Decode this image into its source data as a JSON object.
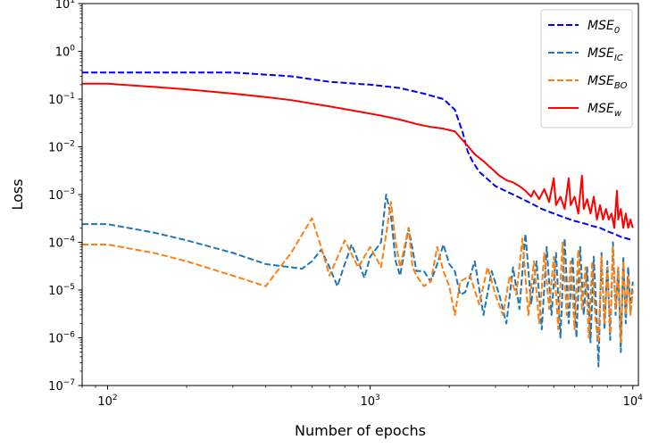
{
  "chart_data": {
    "type": "line",
    "x_scale": "log",
    "y_scale": "log",
    "xlim": [
      80,
      10500
    ],
    "ylim": [
      1e-07,
      10
    ],
    "xlabel": "Number of epochs",
    "ylabel": "Loss",
    "x_ticks": [
      {
        "value": 100,
        "base": "10",
        "exp": "2"
      },
      {
        "value": 1000,
        "base": "10",
        "exp": "3"
      },
      {
        "value": 10000,
        "base": "10",
        "exp": "4"
      }
    ],
    "y_ticks": [
      {
        "value": 10.0,
        "base": "10",
        "exp": "1"
      },
      {
        "value": 1.0,
        "base": "10",
        "exp": "0"
      },
      {
        "value": 0.1,
        "base": "10",
        "exp": "−1"
      },
      {
        "value": 0.01,
        "base": "10",
        "exp": "−2"
      },
      {
        "value": 0.001,
        "base": "10",
        "exp": "−3"
      },
      {
        "value": 0.0001,
        "base": "10",
        "exp": "−4"
      },
      {
        "value": 1e-05,
        "base": "10",
        "exp": "−5"
      },
      {
        "value": 1e-06,
        "base": "10",
        "exp": "−6"
      },
      {
        "value": 1e-07,
        "base": "10",
        "exp": "−7"
      }
    ],
    "legend": {
      "placement": "top-right",
      "entries": [
        {
          "main": "MSE",
          "sub": "0",
          "color": "#0000ff",
          "dash": "dashed"
        },
        {
          "main": "MSE",
          "sub": "IC",
          "color": "#1f77b4",
          "dash": "dashed"
        },
        {
          "main": "MSE",
          "sub": "BO",
          "color": "#ff7f0e",
          "dash": "dashed"
        },
        {
          "main": "MSE",
          "sub": "w",
          "color": "#ff0000",
          "dash": "solid"
        }
      ]
    },
    "series": [
      {
        "name": "MSE_0",
        "color": "#0000ff",
        "dash": "dashed",
        "points": [
          [
            80,
            0.36
          ],
          [
            150,
            0.36
          ],
          [
            300,
            0.36
          ],
          [
            500,
            0.3
          ],
          [
            700,
            0.23
          ],
          [
            1000,
            0.2
          ],
          [
            1300,
            0.17
          ],
          [
            1600,
            0.13
          ],
          [
            1900,
            0.1
          ],
          [
            2100,
            0.06
          ],
          [
            2250,
            0.02
          ],
          [
            2350,
            0.008
          ],
          [
            2450,
            0.005
          ],
          [
            2600,
            0.003
          ],
          [
            3000,
            0.0015
          ],
          [
            3500,
            0.001
          ],
          [
            4000,
            0.0007
          ],
          [
            4500,
            0.0005
          ],
          [
            5000,
            0.0004
          ],
          [
            5500,
            0.00033
          ],
          [
            6000,
            0.00028
          ],
          [
            6500,
            0.00025
          ],
          [
            7000,
            0.00022
          ],
          [
            7500,
            0.0002
          ],
          [
            8000,
            0.00017
          ],
          [
            8500,
            0.00015
          ],
          [
            9000,
            0.00013
          ],
          [
            9500,
            0.00012
          ],
          [
            10000,
            0.00011
          ]
        ]
      },
      {
        "name": "MSE_IC",
        "color": "#1f77b4",
        "dash": "dashed",
        "points": [
          [
            80,
            0.00024
          ],
          [
            100,
            0.00024
          ],
          [
            150,
            0.00016
          ],
          [
            200,
            0.00011
          ],
          [
            300,
            6e-05
          ],
          [
            400,
            3.5e-05
          ],
          [
            550,
            2.8e-05
          ],
          [
            600,
            4e-05
          ],
          [
            650,
            7e-05
          ],
          [
            700,
            3e-05
          ],
          [
            750,
            1.2e-05
          ],
          [
            800,
            3.5e-05
          ],
          [
            850,
            9e-05
          ],
          [
            900,
            4e-05
          ],
          [
            950,
            1.8e-05
          ],
          [
            1000,
            5e-05
          ],
          [
            1100,
            0.0001
          ],
          [
            1150,
            0.001
          ],
          [
            1200,
            0.00035
          ],
          [
            1250,
            4e-05
          ],
          [
            1300,
            2e-05
          ],
          [
            1400,
            0.0002
          ],
          [
            1500,
            2.5e-05
          ],
          [
            1600,
            2.5e-05
          ],
          [
            1700,
            1.5e-05
          ],
          [
            1800,
            3.5e-05
          ],
          [
            1900,
            9e-05
          ],
          [
            2000,
            3.5e-05
          ],
          [
            2100,
            2.5e-05
          ],
          [
            2200,
            8e-06
          ],
          [
            2300,
            9e-06
          ],
          [
            2500,
            4e-05
          ],
          [
            2700,
            3e-06
          ],
          [
            2900,
            2.5e-05
          ],
          [
            3100,
            8e-06
          ],
          [
            3300,
            2e-06
          ],
          [
            3500,
            3e-05
          ],
          [
            3700,
            4e-06
          ],
          [
            3900,
            0.00015
          ],
          [
            4100,
            5e-06
          ],
          [
            4300,
            4e-05
          ],
          [
            4500,
            1.5e-06
          ],
          [
            4700,
            8e-05
          ],
          [
            4900,
            3e-06
          ],
          [
            5100,
            6e-05
          ],
          [
            5300,
            1e-06
          ],
          [
            5500,
            0.00012
          ],
          [
            5700,
            2e-06
          ],
          [
            5900,
            5e-05
          ],
          [
            6100,
            1e-06
          ],
          [
            6300,
            8e-05
          ],
          [
            6500,
            3e-06
          ],
          [
            6700,
            3e-05
          ],
          [
            6900,
            8e-07
          ],
          [
            7100,
            5e-05
          ],
          [
            7300,
            2e-06
          ],
          [
            7400,
            2.5e-07
          ],
          [
            7600,
            6e-05
          ],
          [
            7800,
            1.5e-06
          ],
          [
            8000,
            4e-05
          ],
          [
            8200,
            9e-07
          ],
          [
            8400,
            0.0001
          ],
          [
            8600,
            3e-06
          ],
          [
            8800,
            3e-05
          ],
          [
            9000,
            5e-07
          ],
          [
            9200,
            5e-05
          ],
          [
            9400,
            2e-06
          ],
          [
            9600,
            3e-05
          ],
          [
            9800,
            4e-06
          ],
          [
            10000,
            1.5e-05
          ]
        ]
      },
      {
        "name": "MSE_BO",
        "color": "#ff7f0e",
        "dash": "dashed",
        "points": [
          [
            80,
            9e-05
          ],
          [
            100,
            9e-05
          ],
          [
            150,
            6e-05
          ],
          [
            200,
            4e-05
          ],
          [
            300,
            2e-05
          ],
          [
            400,
            1.2e-05
          ],
          [
            500,
            6e-05
          ],
          [
            600,
            0.00032
          ],
          [
            650,
            8e-05
          ],
          [
            700,
            2e-05
          ],
          [
            800,
            0.00011
          ],
          [
            900,
            3e-05
          ],
          [
            1000,
            8e-05
          ],
          [
            1100,
            3e-05
          ],
          [
            1200,
            0.0007
          ],
          [
            1250,
            0.0001
          ],
          [
            1300,
            3e-05
          ],
          [
            1400,
            0.0002
          ],
          [
            1450,
            3e-05
          ],
          [
            1500,
            2e-05
          ],
          [
            1600,
            1.2e-05
          ],
          [
            1700,
            1.5e-05
          ],
          [
            1800,
            8e-05
          ],
          [
            1900,
            2.5e-05
          ],
          [
            2000,
            1.2e-05
          ],
          [
            2100,
            3e-06
          ],
          [
            2200,
            1.5e-05
          ],
          [
            2400,
            2e-05
          ],
          [
            2600,
            5e-06
          ],
          [
            2800,
            3e-05
          ],
          [
            3000,
            8e-06
          ],
          [
            3200,
            3e-06
          ],
          [
            3400,
            2e-05
          ],
          [
            3600,
            8e-06
          ],
          [
            3800,
            0.00012
          ],
          [
            4000,
            3e-06
          ],
          [
            4200,
            4e-05
          ],
          [
            4400,
            2e-06
          ],
          [
            4600,
            6e-05
          ],
          [
            4800,
            4e-06
          ],
          [
            5000,
            5e-05
          ],
          [
            5200,
            1.5e-06
          ],
          [
            5400,
            0.0001
          ],
          [
            5600,
            3e-06
          ],
          [
            5800,
            4e-05
          ],
          [
            6000,
            1.5e-06
          ],
          [
            6200,
            7e-05
          ],
          [
            6400,
            4e-06
          ],
          [
            6600,
            3e-05
          ],
          [
            6800,
            1e-06
          ],
          [
            7000,
            4e-05
          ],
          [
            7200,
            2.5e-06
          ],
          [
            7400,
            8e-07
          ],
          [
            7600,
            5e-05
          ],
          [
            7800,
            2e-06
          ],
          [
            8000,
            3e-05
          ],
          [
            8200,
            1.2e-06
          ],
          [
            8400,
            8e-05
          ],
          [
            8600,
            4e-06
          ],
          [
            8800,
            3e-05
          ],
          [
            9000,
            8e-07
          ],
          [
            9200,
            4e-05
          ],
          [
            9400,
            3e-06
          ],
          [
            9600,
            2e-05
          ],
          [
            9800,
            3e-06
          ],
          [
            10000,
            1e-05
          ]
        ]
      },
      {
        "name": "MSE_w",
        "color": "#ff0000",
        "dash": "solid",
        "points": [
          [
            80,
            0.21
          ],
          [
            100,
            0.21
          ],
          [
            150,
            0.18
          ],
          [
            200,
            0.16
          ],
          [
            300,
            0.13
          ],
          [
            400,
            0.11
          ],
          [
            500,
            0.095
          ],
          [
            700,
            0.07
          ],
          [
            900,
            0.055
          ],
          [
            1100,
            0.045
          ],
          [
            1300,
            0.037
          ],
          [
            1500,
            0.03
          ],
          [
            1700,
            0.026
          ],
          [
            1900,
            0.024
          ],
          [
            2100,
            0.021
          ],
          [
            2300,
            0.012
          ],
          [
            2500,
            0.007
          ],
          [
            2700,
            0.005
          ],
          [
            2900,
            0.0035
          ],
          [
            3100,
            0.0025
          ],
          [
            3300,
            0.002
          ],
          [
            3500,
            0.0018
          ],
          [
            3700,
            0.0015
          ],
          [
            3900,
            0.0012
          ],
          [
            4100,
            0.0009
          ],
          [
            4200,
            0.0012
          ],
          [
            4400,
            0.0008
          ],
          [
            4600,
            0.0013
          ],
          [
            4800,
            0.0007
          ],
          [
            5000,
            0.0022
          ],
          [
            5100,
            0.0006
          ],
          [
            5300,
            0.0009
          ],
          [
            5500,
            0.0005
          ],
          [
            5700,
            0.0022
          ],
          [
            5800,
            0.0006
          ],
          [
            6000,
            0.0009
          ],
          [
            6200,
            0.0004
          ],
          [
            6400,
            0.0025
          ],
          [
            6500,
            0.0005
          ],
          [
            6700,
            0.0008
          ],
          [
            6900,
            0.0004
          ],
          [
            7100,
            0.0009
          ],
          [
            7300,
            0.0003
          ],
          [
            7500,
            0.0006
          ],
          [
            7700,
            0.0003
          ],
          [
            7900,
            0.0005
          ],
          [
            8100,
            0.0003
          ],
          [
            8300,
            0.0004
          ],
          [
            8500,
            0.0002
          ],
          [
            8700,
            0.0012
          ],
          [
            8800,
            0.0003
          ],
          [
            9000,
            0.0005
          ],
          [
            9200,
            0.0002
          ],
          [
            9400,
            0.0004
          ],
          [
            9600,
            0.0002
          ],
          [
            9800,
            0.0003
          ],
          [
            10000,
            0.0002
          ]
        ]
      }
    ]
  }
}
